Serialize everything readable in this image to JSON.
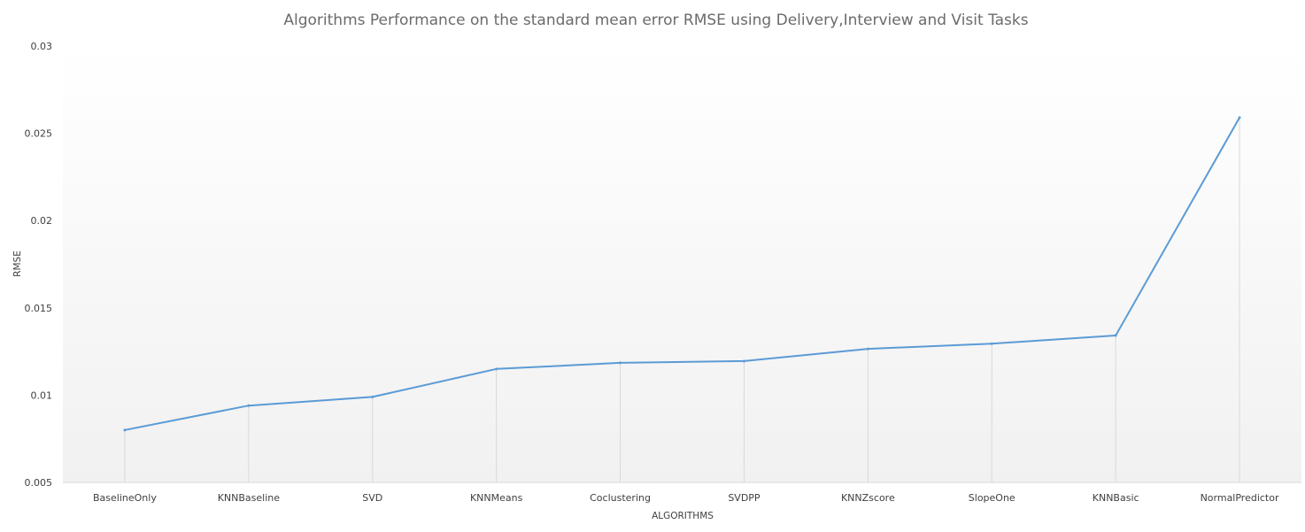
{
  "chart_data": {
    "type": "line",
    "title": "Algorithms Performance on the standard mean error RMSE using Delivery,Interview and Visit Tasks",
    "xlabel": "ALGORITHMS",
    "ylabel": "RMSE",
    "categories": [
      "BaselineOnly",
      "KNNBaseline",
      "SVD",
      "KNNMeans",
      "Coclustering",
      "SVDPP",
      "KNNZscore",
      "SlopeOne",
      "KNNBasic",
      "NormalPredictor"
    ],
    "series": [
      {
        "values": [
          0.008,
          0.0094,
          0.0099,
          0.0115,
          0.01185,
          0.01195,
          0.01265,
          0.01295,
          0.01342,
          0.0259
        ]
      }
    ],
    "ylim": [
      0.005,
      0.03
    ],
    "yticks": [
      0.005,
      0.01,
      0.015,
      0.02,
      0.025,
      0.03
    ],
    "ytick_labels": [
      "0.005",
      "0.01",
      "0.015",
      "0.02",
      "0.025",
      "0.03"
    ],
    "line_color": "#5b9bd5",
    "drop_line_color": "#d9d9d9",
    "grid": false,
    "legend": "none"
  }
}
